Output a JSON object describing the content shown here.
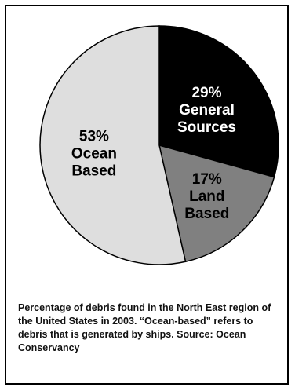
{
  "chart_data": {
    "type": "pie",
    "title": "",
    "slices": [
      {
        "percent_label": "29%",
        "name_lines": [
          "General",
          "Sources"
        ],
        "value": 29,
        "color": "#000000",
        "text_color": "#ffffff"
      },
      {
        "percent_label": "17%",
        "name_lines": [
          "Land",
          "Based"
        ],
        "value": 17,
        "color": "#808080",
        "text_color": "#000000"
      },
      {
        "percent_label": "53%",
        "name_lines": [
          "Ocean",
          "Based"
        ],
        "value": 53,
        "color": "#dedede",
        "text_color": "#000000"
      }
    ]
  },
  "caption": "Percentage of debris found in the North East region of the United States in 2003. “Ocean-based” refers to debris that is generated by ships. Source: Ocean Conservancy"
}
